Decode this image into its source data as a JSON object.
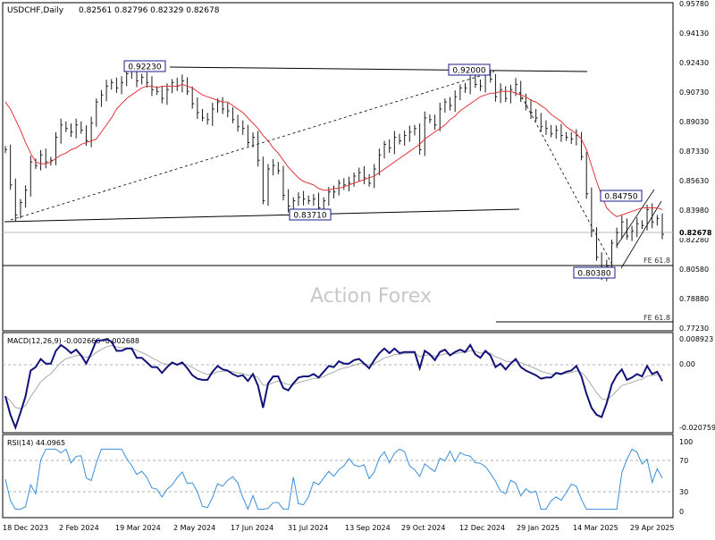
{
  "header": {
    "symbol": "USDCHF,Daily",
    "ohlc": "0.82561 0.82796 0.82329 0.82678"
  },
  "watermark": "Action Forex",
  "colors": {
    "price": "#1a1a1a",
    "ma": "#e0353b",
    "macd": "#12127a",
    "signal": "#aaaaaa",
    "rsi": "#3a8fd8",
    "label_border": "#1e1e8c",
    "lines": "#000000"
  },
  "price_axis": {
    "labels": [
      "0.95780",
      "0.94130",
      "0.92430",
      "0.90730",
      "0.89030",
      "0.87330",
      "0.85630",
      "0.83980",
      "0.82280",
      "0.80580",
      "0.78880",
      "0.77230"
    ],
    "current": "0.82678"
  },
  "annotations": {
    "high1": "0.92230",
    "high2": "0.92000",
    "low1": "0.83710",
    "mid_high": "0.84750",
    "low2": "0.80380",
    "fe1": "FE 61.8",
    "fe2": "FE 61.8"
  },
  "macd": {
    "title": "MACD(12,26,9) -0.002666 -0.002688",
    "axis": [
      "0.008923",
      "0.00",
      "-0.020759"
    ],
    "current": "0.00"
  },
  "rsi": {
    "title": "RSI(14) 44.0965",
    "axis": [
      "100",
      "70",
      "30",
      "0"
    ]
  },
  "date_axis": [
    "18 Dec 2023",
    "2 Feb 2024",
    "19 Mar 2024",
    "2 May 2024",
    "17 Jun 2024",
    "31 Jul 2024",
    "13 Sep 2024",
    "29 Oct 2024",
    "12 Dec 2024",
    "29 Jan 2025",
    "14 Mar 2025",
    "29 Apr 2025"
  ],
  "chart_data": {
    "type": "line",
    "series": [
      {
        "values": [
          0.875,
          0.855,
          0.838,
          0.845,
          0.852,
          0.868,
          0.866,
          0.872,
          0.868,
          0.869,
          0.882,
          0.889,
          0.887,
          0.885,
          0.889,
          0.886,
          0.88,
          0.89,
          0.902,
          0.906,
          0.911,
          0.913,
          0.91,
          0.913,
          0.918,
          0.92,
          0.914,
          0.916,
          0.913,
          0.909,
          0.908,
          0.904,
          0.909,
          0.913,
          0.911,
          0.914,
          0.908,
          0.901,
          0.896,
          0.893,
          0.892,
          0.898,
          0.902,
          0.898,
          0.897,
          0.892,
          0.888,
          0.887,
          0.879,
          0.882,
          0.869,
          0.846,
          0.864,
          0.866,
          0.863,
          0.849,
          0.843,
          0.846,
          0.848,
          0.847,
          0.846,
          0.847,
          0.842,
          0.846,
          0.851,
          0.851,
          0.856,
          0.855,
          0.856,
          0.86,
          0.862,
          0.859,
          0.856,
          0.864,
          0.872,
          0.878,
          0.876,
          0.882,
          0.88,
          0.883,
          0.885,
          0.887,
          0.875,
          0.893,
          0.892,
          0.889,
          0.898,
          0.902,
          0.9,
          0.905,
          0.91,
          0.91,
          0.918,
          0.912,
          0.911,
          0.918,
          0.915,
          0.905,
          0.909,
          0.904,
          0.909,
          0.912,
          0.904,
          0.9,
          0.896,
          0.893,
          0.888,
          0.887,
          0.884,
          0.886,
          0.883,
          0.882,
          0.881,
          0.883,
          0.871,
          0.85,
          0.829,
          0.814,
          0.804,
          0.809,
          0.822,
          0.828,
          0.834,
          0.826,
          0.829,
          0.833,
          0.832,
          0.841,
          0.834,
          0.836,
          0.827
        ]
      },
      {
        "values": [
          0.902,
          0.898,
          0.892,
          0.886,
          0.879,
          0.873,
          0.868,
          0.867,
          0.867,
          0.868,
          0.87,
          0.872,
          0.873,
          0.875,
          0.876,
          0.878,
          0.879,
          0.88,
          0.881,
          0.885,
          0.889,
          0.893,
          0.898,
          0.901,
          0.904,
          0.906,
          0.908,
          0.91,
          0.911,
          0.911,
          0.91,
          0.911,
          0.911,
          0.911,
          0.911,
          0.912,
          0.911,
          0.91,
          0.908,
          0.906,
          0.905,
          0.904,
          0.903,
          0.902,
          0.902,
          0.9,
          0.898,
          0.896,
          0.893,
          0.89,
          0.887,
          0.883,
          0.88,
          0.876,
          0.873,
          0.869,
          0.865,
          0.862,
          0.859,
          0.857,
          0.856,
          0.855,
          0.853,
          0.852,
          0.852,
          0.853,
          0.853,
          0.854,
          0.855,
          0.856,
          0.857,
          0.858,
          0.859,
          0.86,
          0.862,
          0.864,
          0.866,
          0.868,
          0.87,
          0.872,
          0.874,
          0.876,
          0.878,
          0.881,
          0.883,
          0.885,
          0.887,
          0.889,
          0.892,
          0.894,
          0.897,
          0.899,
          0.901,
          0.903,
          0.905,
          0.906,
          0.907,
          0.907,
          0.908,
          0.908,
          0.908,
          0.907,
          0.906,
          0.905,
          0.903,
          0.902,
          0.9,
          0.898,
          0.895,
          0.893,
          0.891,
          0.888,
          0.886,
          0.884,
          0.881,
          0.875,
          0.866,
          0.857,
          0.849,
          0.842,
          0.839,
          0.837,
          0.838,
          0.839,
          0.84,
          0.841,
          0.842,
          0.842,
          0.842,
          0.842,
          0.841
        ]
      }
    ],
    "ylim": [
      0.7723,
      0.9578
    ]
  }
}
